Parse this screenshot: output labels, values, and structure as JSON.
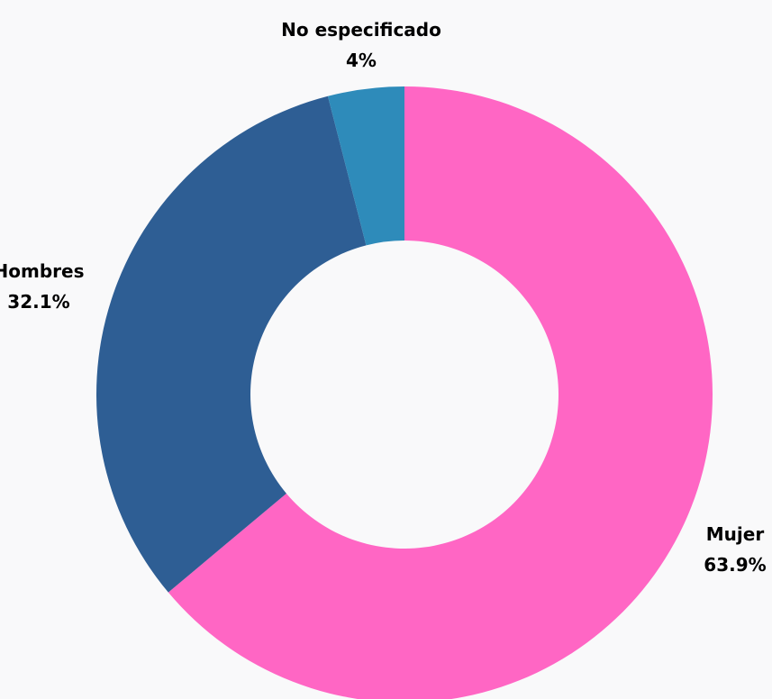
{
  "chart_data": {
    "type": "pie",
    "donut": true,
    "categories": [
      "Mujer",
      "Hombres",
      "No especificado"
    ],
    "values": [
      63.9,
      32.1,
      4.0
    ],
    "value_labels": [
      "63.9%",
      "32.1%",
      "4%"
    ],
    "colors": [
      "#ff66c4",
      "#2e5e94",
      "#2e8bba"
    ],
    "background": "#f9f9fa",
    "legend": "none"
  }
}
